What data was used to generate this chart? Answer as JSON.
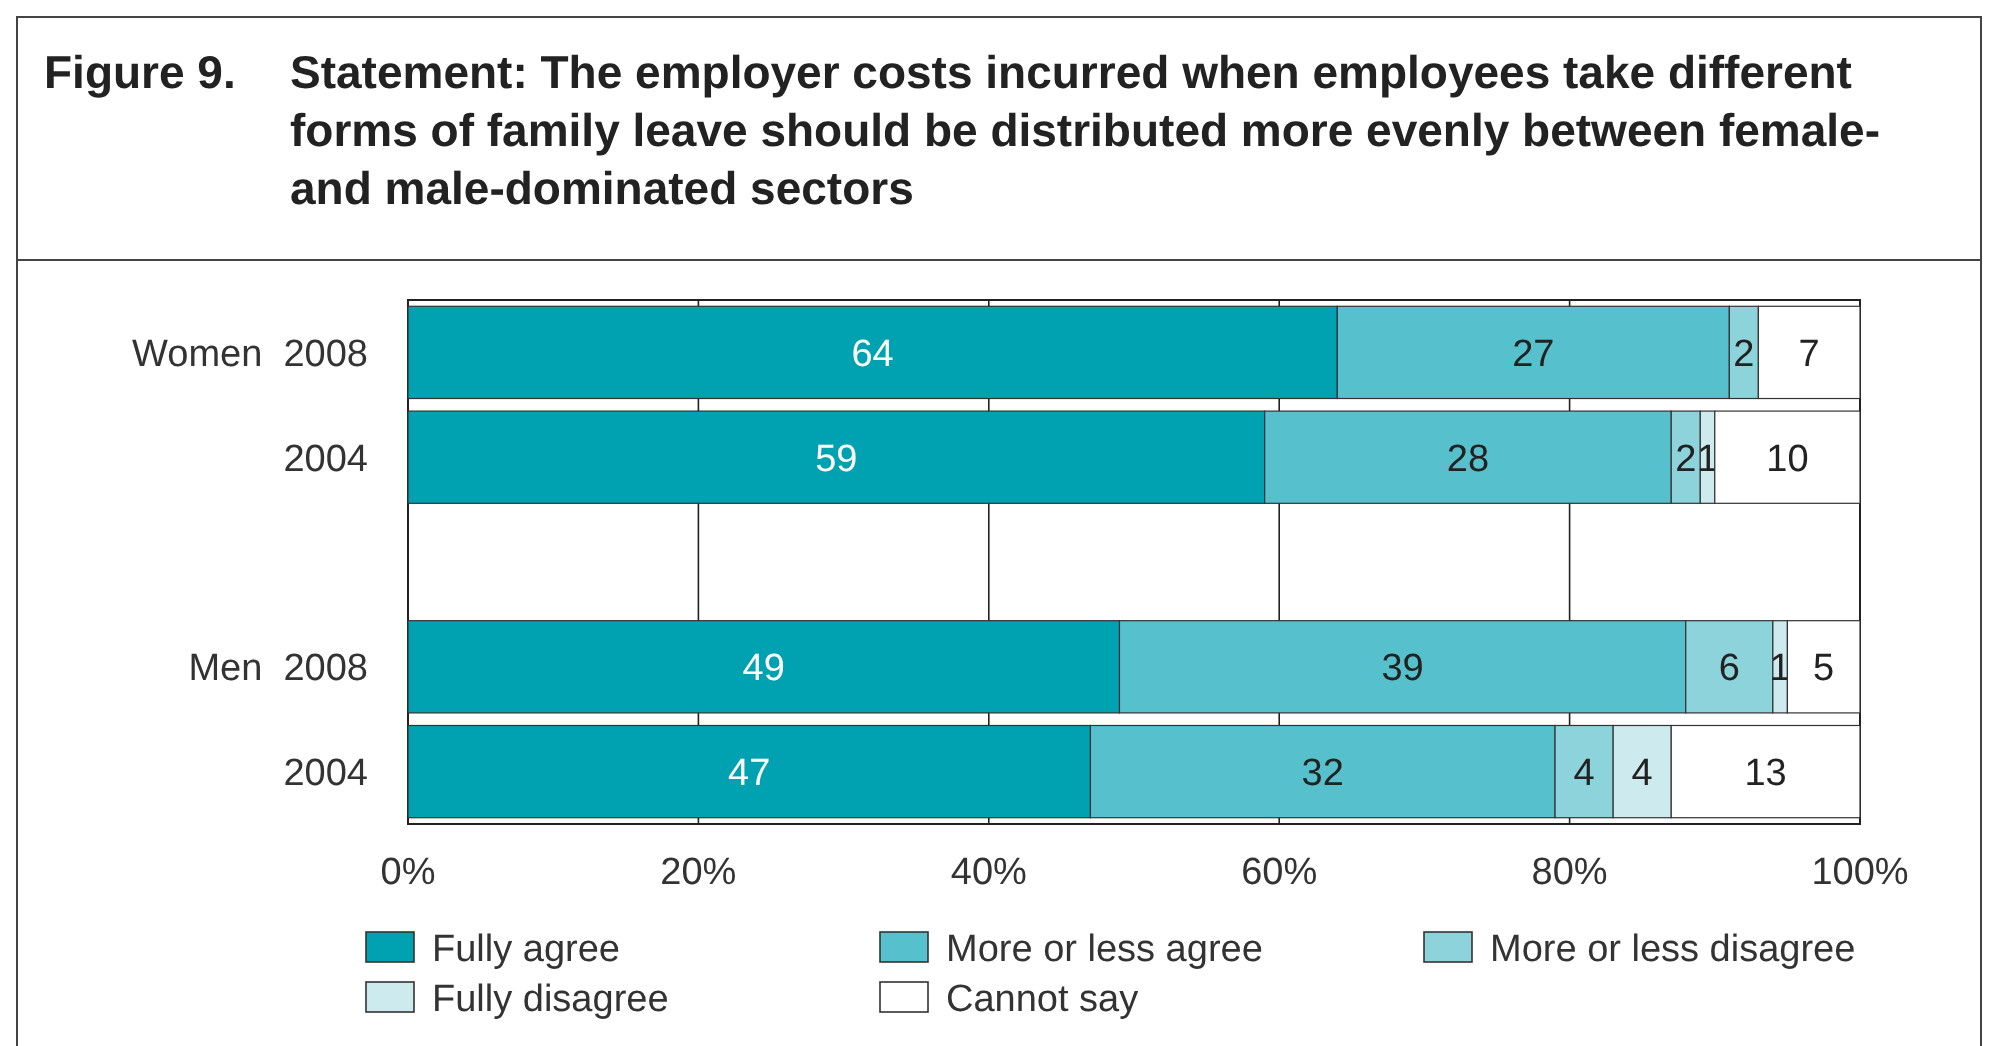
{
  "chart_data": {
    "type": "bar",
    "orientation": "horizontal",
    "stacked": true,
    "title": "Figure 9. Statement: The employer costs incurred when employees take different forms of family leave should be distributed more evenly between female- and male-dominated sectors",
    "categories": [
      "Women  2008",
      "2004",
      null,
      "Men  2008",
      "2004"
    ],
    "series": [
      {
        "name": "Fully agree",
        "color": "#00a1b0",
        "values": [
          64,
          59,
          null,
          49,
          47
        ],
        "value_labels": [
          "64",
          "59",
          null,
          "49",
          "47"
        ]
      },
      {
        "name": "More or less agree",
        "color": "#56c1cc",
        "values": [
          27,
          28,
          null,
          39,
          32
        ],
        "value_labels": [
          "27",
          "28",
          null,
          "39",
          "32"
        ]
      },
      {
        "name": "More or less disagree",
        "color": "#8dd3dc",
        "values": [
          2,
          2,
          null,
          6,
          4
        ],
        "value_labels": [
          "2",
          "2",
          null,
          "6",
          "4"
        ]
      },
      {
        "name": "Fully disagree",
        "color": "#cdebef",
        "values": [
          0,
          1,
          null,
          1,
          4
        ],
        "value_labels": [
          null,
          "1",
          null,
          "1",
          "4"
        ]
      },
      {
        "name": "Cannot say",
        "color": "#ffffff",
        "values": [
          7,
          10,
          null,
          5,
          13
        ],
        "value_labels": [
          "7",
          "10",
          null,
          "5",
          "13"
        ]
      }
    ],
    "xlim": [
      0,
      100
    ],
    "xticks": [
      {
        "value": 0,
        "label": "0%"
      },
      {
        "value": 20,
        "label": "20%"
      },
      {
        "value": 40,
        "label": "40%"
      },
      {
        "value": 60,
        "label": "60%"
      },
      {
        "value": 80,
        "label": "80%"
      },
      {
        "value": 100,
        "label": "100%"
      }
    ],
    "grid": "x",
    "legend": "bottom"
  }
}
